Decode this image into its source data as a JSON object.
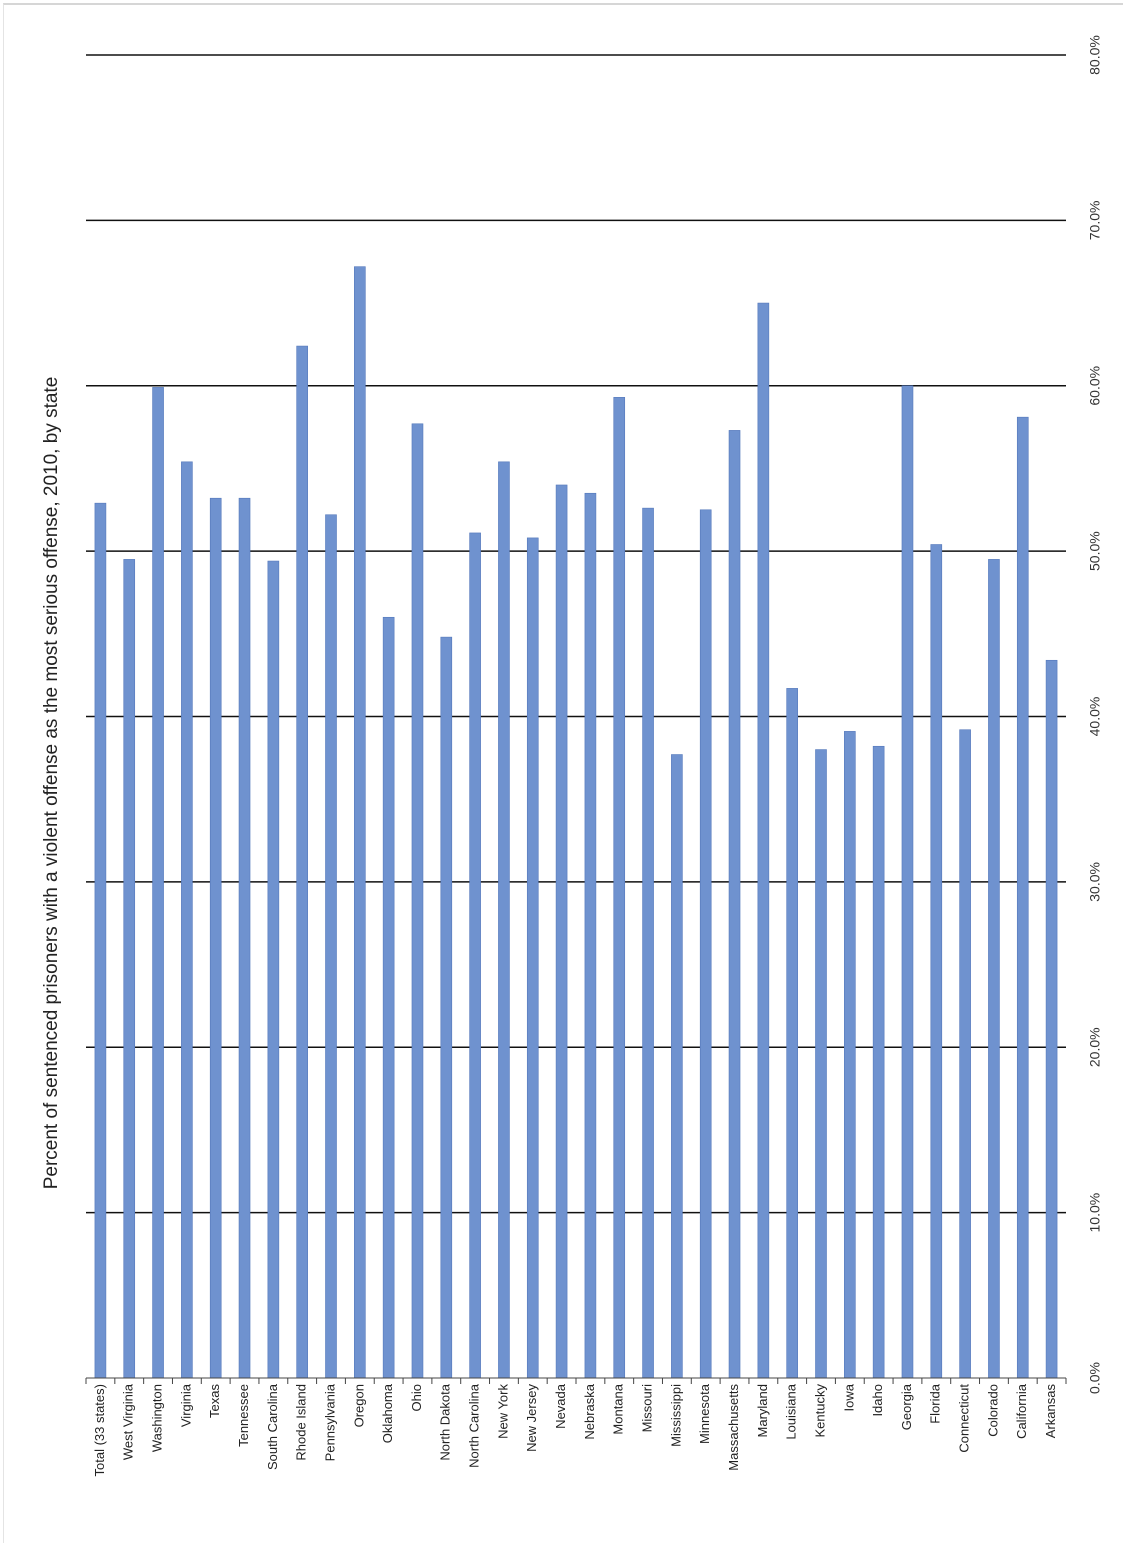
{
  "chart_data": {
    "type": "bar",
    "orientation": "vertical",
    "title": "Percent of sentenced prisoners with a violent offense as the most serious offense, 2010, by state",
    "xlabel": "",
    "ylabel": "",
    "ylim": [
      0,
      80
    ],
    "yticks": [
      0,
      10,
      20,
      30,
      40,
      50,
      60,
      70,
      80
    ],
    "ytick_labels": [
      "0.0%",
      "10.0%",
      "20.0%",
      "30.0%",
      "40.0%",
      "50.0%",
      "60.0%",
      "70.0%",
      "80.0%"
    ],
    "grid": true,
    "legend": "none",
    "bar_color": "#6f92cf",
    "grid_color": "#111111",
    "categories": [
      "Total (33 states)",
      "West Virginia",
      "Washington",
      "Virginia",
      "Texas",
      "Tennessee",
      "South Carolina",
      "Rhode Island",
      "Pennsylvania",
      "Oregon",
      "Oklahoma",
      "Ohio",
      "North Dakota",
      "North Carolina",
      "New York",
      "New Jersey",
      "Nevada",
      "Nebraska",
      "Montana",
      "Missouri",
      "Mississippi",
      "Minnesota",
      "Massachusetts",
      "Maryland",
      "Louisiana",
      "Kentucky",
      "Iowa",
      "Idaho",
      "Georgia",
      "Florida",
      "Connecticut",
      "Colorado",
      "California",
      "Arkansas"
    ],
    "values": [
      52.9,
      49.5,
      59.9,
      55.4,
      53.2,
      53.2,
      49.4,
      62.4,
      52.2,
      67.2,
      46.0,
      57.7,
      44.8,
      51.1,
      55.4,
      50.8,
      54.0,
      53.5,
      59.3,
      52.6,
      37.7,
      52.5,
      57.3,
      65.0,
      41.7,
      38.0,
      39.1,
      38.2,
      60.0,
      50.4,
      39.2,
      49.5,
      58.1,
      43.4
    ]
  }
}
